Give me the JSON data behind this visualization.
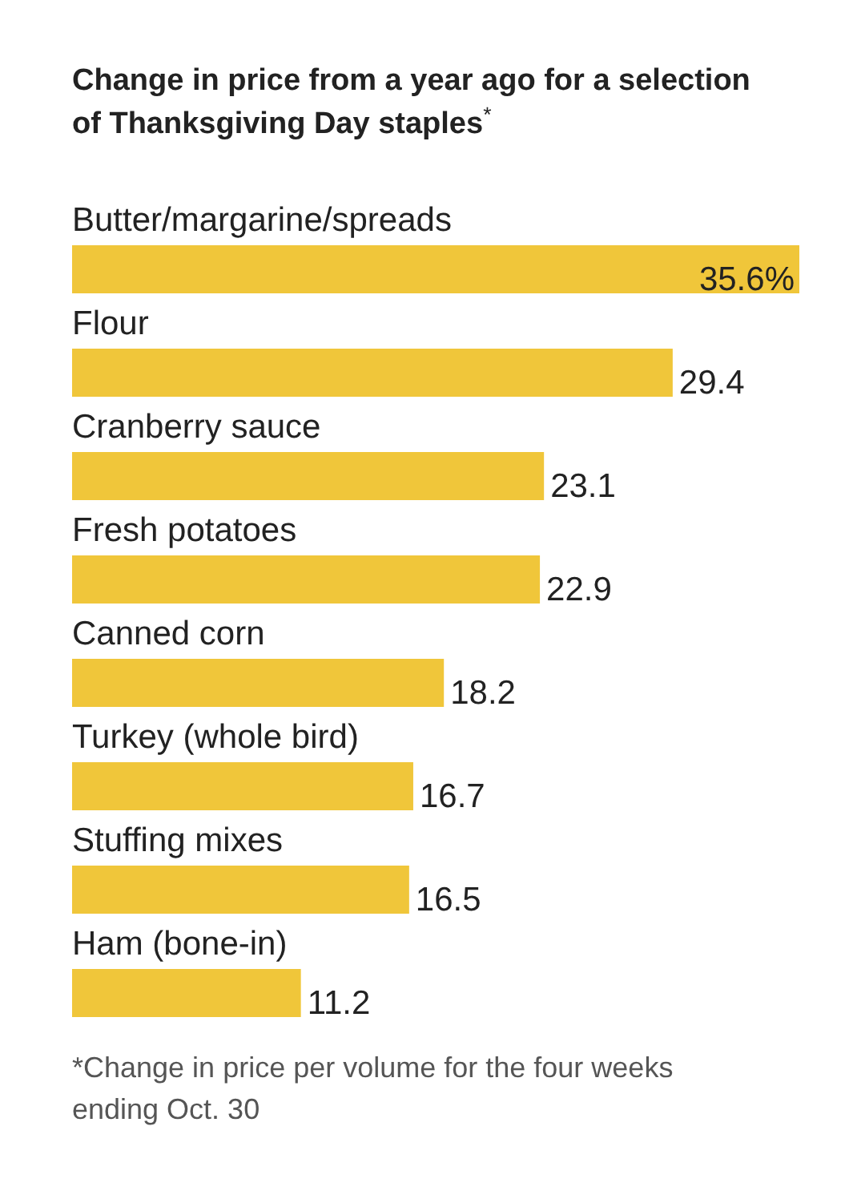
{
  "chart_data": {
    "type": "bar",
    "orientation": "horizontal",
    "title": "Change in price from a year ago for a selection of Thanksgiving Day staples$^{*}$",
    "categories": [
      "Butter/margarine/spreads",
      "Flour",
      "Cranberry sauce",
      "Fresh potatoes",
      "Canned corn",
      "Turkey (whole bird)",
      "Stuffing mixes",
      "Ham (bone-in)"
    ],
    "values": [
      35.6,
      29.4,
      23.1,
      22.9,
      18.2,
      16.7,
      16.5,
      11.2
    ],
    "value_labels": [
      "35.6%",
      "29.4",
      "23.1",
      "22.9",
      "18.2",
      "16.7",
      "16.5",
      "11.2"
    ],
    "color": "#f0c63a",
    "annotations": [
      "*Change in price per volume for the four weeks ending Oct. 30"
    ]
  }
}
